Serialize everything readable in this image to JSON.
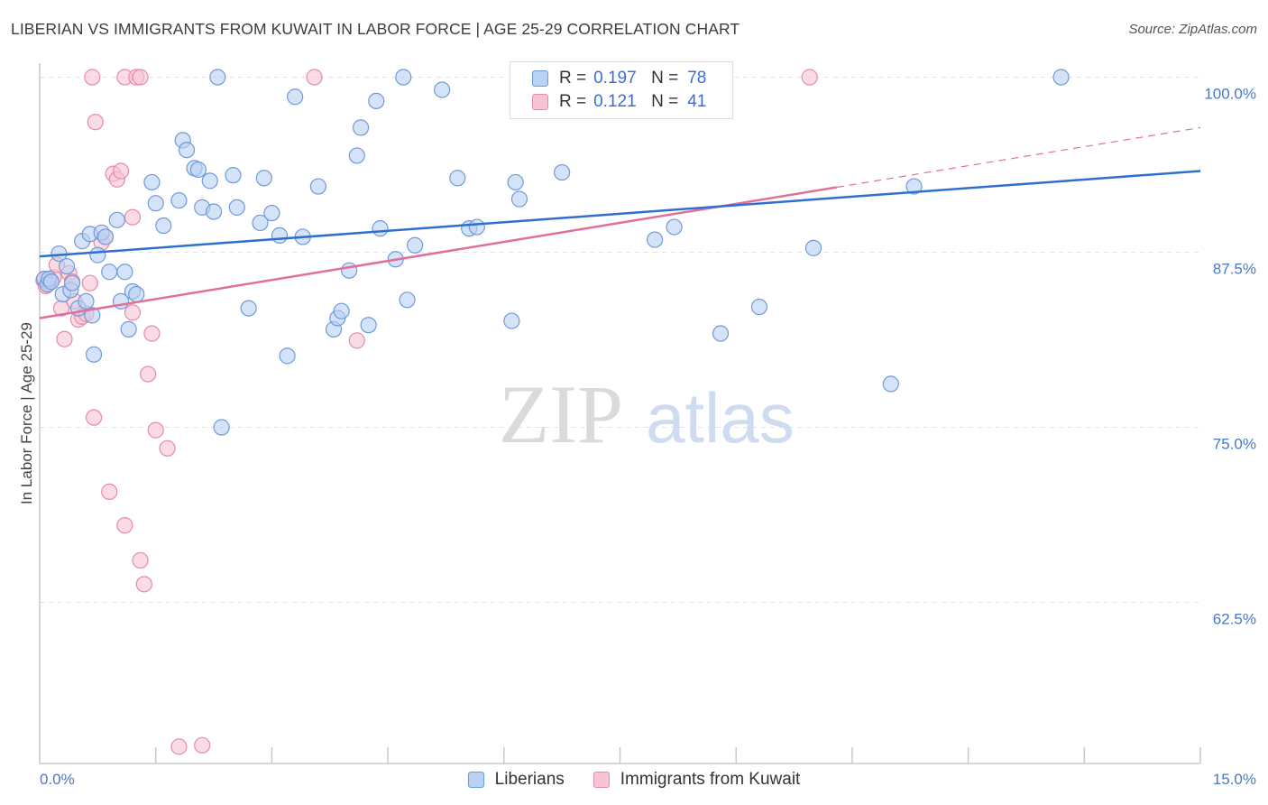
{
  "header": {
    "title": "LIBERIAN VS IMMIGRANTS FROM KUWAIT IN LABOR FORCE | AGE 25-29 CORRELATION CHART",
    "source": "Source: ZipAtlas.com"
  },
  "watermark": {
    "part1": "ZIP",
    "part2": "atlas"
  },
  "legend_top": {
    "rows": [
      {
        "r_label": "R =",
        "r_value": "0.197",
        "n_label": "N =",
        "n_value": "78"
      },
      {
        "r_label": "R =",
        "r_value": "0.121",
        "n_label": "N =",
        "n_value": "41"
      }
    ]
  },
  "chart_data": {
    "type": "scatter",
    "title": "LIBERIAN VS IMMIGRANTS FROM KUWAIT IN LABOR FORCE | AGE 25-29 CORRELATION CHART",
    "xlabel": "",
    "ylabel": "In Labor Force | Age 25-29",
    "xlim": [
      0,
      15
    ],
    "ylim": [
      51,
      101
    ],
    "x_tick_labels": [
      {
        "value": 0,
        "label": "0.0%"
      },
      {
        "value": 15,
        "label": "15.0%"
      }
    ],
    "y_tick_labels": [
      {
        "value": 100,
        "label": "100.0%"
      },
      {
        "value": 87.5,
        "label": "87.5%"
      },
      {
        "value": 75,
        "label": "75.0%"
      },
      {
        "value": 62.5,
        "label": "62.5%"
      }
    ],
    "grid": true,
    "legend_position": "bottom",
    "colors": {
      "liberians_fill": "#b9d1f3",
      "liberians_stroke": "#6f9ad8",
      "liberians_line": "#2f6fd0",
      "kuwait_fill": "#f8c4d4",
      "kuwait_stroke": "#e889a8",
      "kuwait_line": "#e0709a",
      "axis_text": "#4a78c2",
      "grid": "#e2e2e2"
    },
    "series": [
      {
        "name": "Liberians",
        "trend": {
          "x0": 0,
          "y0": 87.2,
          "x1": 15,
          "y1": 93.3,
          "dashed_from_x": null
        },
        "points": [
          [
            0.06,
            85.6
          ],
          [
            0.1,
            85.2
          ],
          [
            0.12,
            85.6
          ],
          [
            0.15,
            85.4
          ],
          [
            0.25,
            87.4
          ],
          [
            0.3,
            84.5
          ],
          [
            0.35,
            86.5
          ],
          [
            0.4,
            84.8
          ],
          [
            0.42,
            85.3
          ],
          [
            0.5,
            83.5
          ],
          [
            0.55,
            88.3
          ],
          [
            0.6,
            84
          ],
          [
            0.65,
            88.8
          ],
          [
            0.68,
            83
          ],
          [
            0.7,
            80.2
          ],
          [
            0.75,
            87.3
          ],
          [
            0.8,
            88.9
          ],
          [
            0.85,
            88.6
          ],
          [
            0.9,
            86.1
          ],
          [
            1.0,
            89.8
          ],
          [
            1.05,
            84
          ],
          [
            1.1,
            86.1
          ],
          [
            1.15,
            82
          ],
          [
            1.2,
            84.7
          ],
          [
            1.25,
            84.5
          ],
          [
            1.45,
            92.5
          ],
          [
            1.5,
            91
          ],
          [
            1.6,
            89.4
          ],
          [
            1.8,
            91.2
          ],
          [
            1.85,
            95.5
          ],
          [
            1.9,
            94.8
          ],
          [
            2.0,
            93.5
          ],
          [
            2.05,
            93.4
          ],
          [
            2.1,
            90.7
          ],
          [
            2.2,
            92.6
          ],
          [
            2.25,
            90.4
          ],
          [
            2.3,
            100
          ],
          [
            2.35,
            75
          ],
          [
            2.5,
            93
          ],
          [
            2.55,
            90.7
          ],
          [
            2.7,
            83.5
          ],
          [
            2.85,
            89.6
          ],
          [
            2.9,
            92.8
          ],
          [
            3.0,
            90.3
          ],
          [
            3.1,
            88.7
          ],
          [
            3.2,
            80.1
          ],
          [
            3.3,
            98.6
          ],
          [
            3.4,
            88.6
          ],
          [
            3.6,
            92.2
          ],
          [
            3.8,
            82
          ],
          [
            3.85,
            82.8
          ],
          [
            3.9,
            83.3
          ],
          [
            4.0,
            86.2
          ],
          [
            4.1,
            94.4
          ],
          [
            4.15,
            96.4
          ],
          [
            4.25,
            82.3
          ],
          [
            4.35,
            98.3
          ],
          [
            4.4,
            89.2
          ],
          [
            4.6,
            87
          ],
          [
            4.7,
            100
          ],
          [
            4.75,
            84.1
          ],
          [
            4.85,
            88
          ],
          [
            5.2,
            99.1
          ],
          [
            5.4,
            92.8
          ],
          [
            5.55,
            89.2
          ],
          [
            5.65,
            89.3
          ],
          [
            6.1,
            82.6
          ],
          [
            6.15,
            92.5
          ],
          [
            6.2,
            91.3
          ],
          [
            6.75,
            93.2
          ],
          [
            7.3,
            98
          ],
          [
            7.95,
            88.4
          ],
          [
            8.2,
            89.3
          ],
          [
            8.8,
            81.7
          ],
          [
            9.3,
            83.6
          ],
          [
            10.0,
            87.8
          ],
          [
            11.0,
            78.1
          ],
          [
            11.3,
            92.2
          ],
          [
            13.2,
            100
          ]
        ]
      },
      {
        "name": "Immigrants from Kuwait",
        "trend": {
          "x0": 0,
          "y0": 82.8,
          "x1": 15,
          "y1": 96.4,
          "dashed_from_x": 10.3
        },
        "points": [
          [
            0.05,
            85.5
          ],
          [
            0.08,
            85.1
          ],
          [
            0.12,
            85.3
          ],
          [
            0.18,
            85.7
          ],
          [
            0.22,
            86.6
          ],
          [
            0.28,
            83.5
          ],
          [
            0.32,
            81.3
          ],
          [
            0.38,
            86
          ],
          [
            0.42,
            85.4
          ],
          [
            0.45,
            84
          ],
          [
            0.5,
            82.7
          ],
          [
            0.55,
            82.9
          ],
          [
            0.6,
            83.1
          ],
          [
            0.65,
            85.3
          ],
          [
            0.68,
            100
          ],
          [
            0.7,
            75.7
          ],
          [
            0.72,
            96.8
          ],
          [
            0.8,
            88.2
          ],
          [
            0.85,
            88.6
          ],
          [
            0.9,
            70.4
          ],
          [
            0.95,
            93.1
          ],
          [
            1.0,
            92.7
          ],
          [
            1.05,
            93.3
          ],
          [
            1.1,
            68
          ],
          [
            1.1,
            100
          ],
          [
            1.2,
            90
          ],
          [
            1.2,
            83.2
          ],
          [
            1.25,
            100
          ],
          [
            1.3,
            100
          ],
          [
            1.3,
            65.5
          ],
          [
            1.35,
            63.8
          ],
          [
            1.4,
            78.8
          ],
          [
            1.45,
            81.7
          ],
          [
            1.5,
            74.8
          ],
          [
            1.65,
            73.5
          ],
          [
            1.8,
            52.2
          ],
          [
            2.1,
            52.3
          ],
          [
            3.55,
            100
          ],
          [
            4.1,
            81.2
          ],
          [
            9.95,
            100
          ]
        ]
      }
    ]
  },
  "legend_bottom": {
    "items": [
      {
        "label": "Liberians"
      },
      {
        "label": "Immigrants from Kuwait"
      }
    ]
  }
}
